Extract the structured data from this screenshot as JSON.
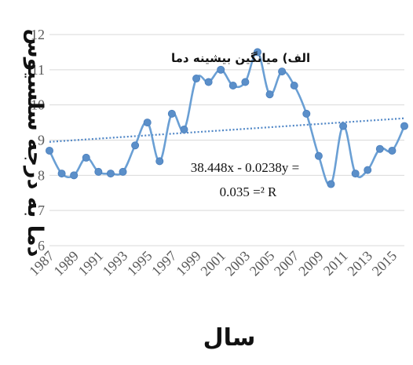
{
  "chart_data": {
    "type": "line",
    "title": "الف) میانگین بیشینه دما",
    "xlabel": "سال",
    "ylabel": "دما به درجه سلسیوس",
    "x": [
      1987,
      1988,
      1989,
      1990,
      1991,
      1992,
      1993,
      1994,
      1995,
      1996,
      1997,
      1998,
      1999,
      2000,
      2001,
      2002,
      2003,
      2004,
      2005,
      2006,
      2007,
      2008,
      2009,
      2010,
      2011,
      2012,
      2013,
      2014,
      2015,
      2016
    ],
    "xticks": [
      "1987",
      "1989",
      "1991",
      "1993",
      "1995",
      "1997",
      "1999",
      "2001",
      "2003",
      "2005",
      "2007",
      "2009",
      "2011",
      "2013",
      "2015"
    ],
    "yticks": [
      "6",
      "7",
      "8",
      "9",
      "10",
      "11",
      "12"
    ],
    "ylim": [
      6,
      12
    ],
    "series": [
      {
        "values": [
          8.7,
          8.05,
          8.0,
          8.5,
          8.1,
          8.05,
          8.1,
          8.85,
          9.5,
          8.4,
          9.75,
          9.3,
          10.75,
          10.65,
          11.0,
          10.55,
          10.65,
          11.5,
          10.3,
          10.95,
          10.55,
          9.75,
          8.55,
          7.75,
          9.4,
          8.05,
          8.15,
          8.75,
          8.7,
          9.4
        ]
      }
    ],
    "trendline": {
      "start": 8.95,
      "end": 9.62
    },
    "equation_lines": [
      "38.448x - 0.0238y =",
      "0.035 =² R"
    ],
    "colors": {
      "line": "#6a9fd4",
      "marker": "#5b8fc9",
      "trend": "#4f86c6",
      "grid": "#d9d9d9"
    },
    "grid": "horizontal"
  }
}
